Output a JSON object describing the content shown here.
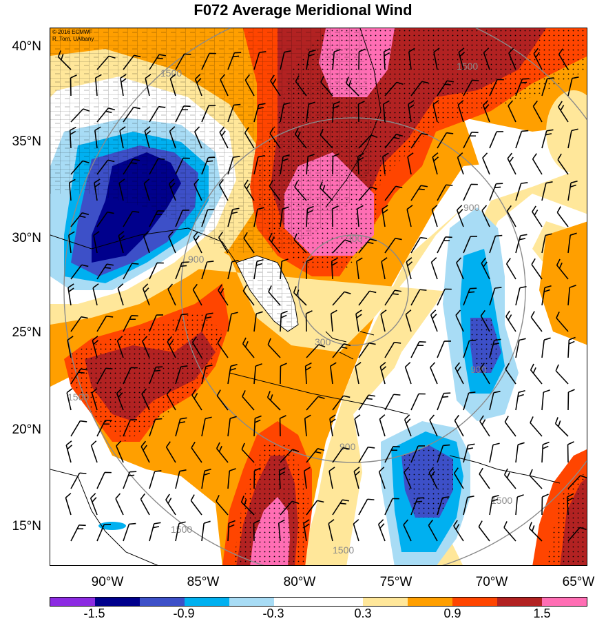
{
  "title": "F072 Average Meridional Wind",
  "credits": [
    "© 2016 ECMWF",
    "R. Torn, UAlbany"
  ],
  "latitude_labels": [
    "40°N",
    "35°N",
    "30°N",
    "25°N",
    "20°N",
    "15°N"
  ],
  "longitude_labels": [
    "90°W",
    "85°W",
    "80°W",
    "75°W",
    "70°W",
    "65°W"
  ],
  "colorbar": {
    "colors": [
      "#8c2be2",
      "#00008c",
      "#3d50c8",
      "#00b0f0",
      "#a8dcf5",
      "#ffffff",
      "#ffffff",
      "#ffe79a",
      "#ff9f00",
      "#ff4500",
      "#b22222",
      "#ff6eb4"
    ],
    "labels": [
      "-1.5",
      "-0.9",
      "-0.3",
      "0.3",
      "0.9",
      "1.5"
    ]
  },
  "contour_labels": [
    "300",
    "300",
    "900",
    "900",
    "900",
    "900",
    "1500",
    "1500",
    "1500",
    "1500",
    "1500",
    "1500"
  ],
  "field_colors": {
    "pink": "#ff6eb4",
    "dark_red": "#b22222",
    "red_orange": "#ff4500",
    "orange": "#ff9f00",
    "light_yellow": "#ffe79a",
    "light_blue": "#a8dcf5",
    "cyan": "#00b0f0",
    "blue": "#3d50c8",
    "navy": "#00008c"
  }
}
